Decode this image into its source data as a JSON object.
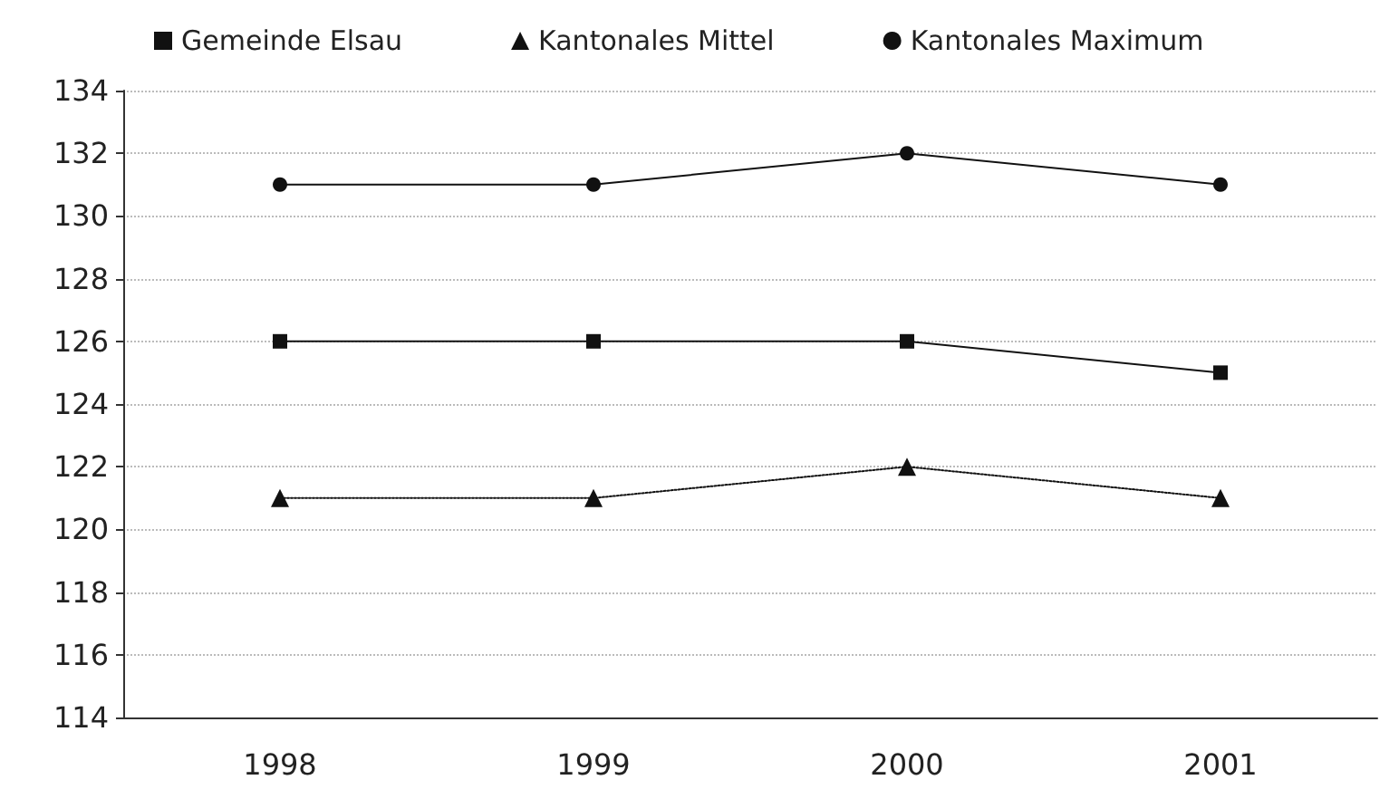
{
  "chart_data": {
    "type": "line",
    "categories": [
      "1998",
      "1999",
      "2000",
      "2001"
    ],
    "series": [
      {
        "name": "Gemeinde Elsau",
        "color": "#111111",
        "marker": "square",
        "line_style": "solid",
        "values": [
          126,
          126,
          126,
          125
        ]
      },
      {
        "name": "Kantonales Mittel",
        "color": "#111111",
        "marker": "triangle",
        "line_style": "dotted",
        "values": [
          121,
          121,
          122,
          121
        ]
      },
      {
        "name": "Kantonales Maximum",
        "color": "#111111",
        "marker": "circle",
        "line_style": "solid",
        "values": [
          131,
          131,
          132,
          131
        ]
      }
    ],
    "ylim": [
      114,
      134
    ],
    "yticks": [
      114,
      116,
      118,
      120,
      122,
      124,
      126,
      128,
      130,
      132,
      134
    ],
    "grid": "y",
    "legend": "top"
  }
}
